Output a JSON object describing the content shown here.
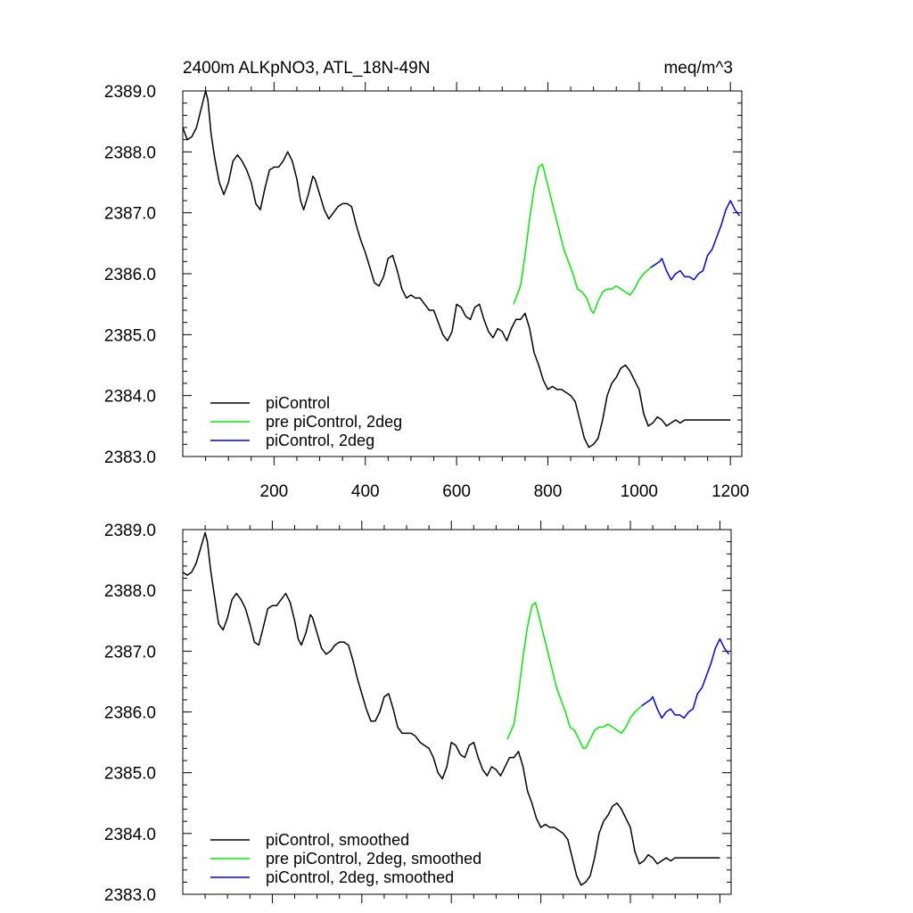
{
  "header": {
    "title_left": "2400m ALKpNO3, ATL_18N-49N",
    "title_right": "meq/m^3"
  },
  "chart_data": [
    {
      "type": "line",
      "panel": "top",
      "title": "2400m ALKpNO3, ATL_18N-49N",
      "units": "meq/m^3",
      "xlim": [
        0,
        1225
      ],
      "ylim": [
        2383.0,
        2389.0
      ],
      "y_ticks": [
        "2383.0",
        "2384.0",
        "2385.0",
        "2386.0",
        "2387.0",
        "2388.0",
        "2389.0"
      ],
      "x_ticks": [
        "200",
        "400",
        "600",
        "800",
        "1000",
        "1200"
      ],
      "legend": [
        "piControl",
        "pre piControl, 2deg",
        "piControl, 2deg"
      ],
      "legend_position": "bottom-left",
      "series": [
        {
          "name": "piControl",
          "color": "#000000",
          "x": [
            0,
            10,
            20,
            30,
            40,
            50,
            55,
            62,
            70,
            80,
            90,
            100,
            110,
            120,
            130,
            140,
            150,
            160,
            170,
            180,
            190,
            200,
            210,
            220,
            230,
            240,
            250,
            258,
            265,
            275,
            285,
            290,
            300,
            310,
            320,
            330,
            340,
            350,
            360,
            370,
            380,
            390,
            400,
            410,
            420,
            430,
            440,
            450,
            460,
            470,
            480,
            490,
            500,
            510,
            520,
            530,
            540,
            550,
            560,
            570,
            580,
            590,
            600,
            610,
            620,
            630,
            640,
            650,
            660,
            670,
            680,
            690,
            700,
            710,
            720,
            730,
            740,
            750,
            760,
            770,
            780,
            790,
            800,
            810,
            820,
            830,
            840,
            850,
            860,
            870,
            880,
            890,
            900,
            910,
            920,
            930,
            940,
            950,
            960,
            970,
            980,
            990,
            1000,
            1010,
            1020,
            1030,
            1040,
            1050,
            1060,
            1070,
            1080,
            1090,
            1100,
            1110,
            1120,
            1130,
            1140,
            1150,
            1160,
            1170,
            1180,
            1190,
            1200
          ],
          "y": [
            2388.4,
            2388.2,
            2388.25,
            2388.4,
            2388.7,
            2389.0,
            2388.85,
            2388.3,
            2387.9,
            2387.5,
            2387.3,
            2387.5,
            2387.85,
            2387.95,
            2387.85,
            2387.7,
            2387.5,
            2387.15,
            2387.05,
            2387.4,
            2387.7,
            2387.75,
            2387.75,
            2387.85,
            2388.0,
            2387.85,
            2387.55,
            2387.2,
            2387.05,
            2387.3,
            2387.6,
            2387.55,
            2387.3,
            2387.05,
            2386.9,
            2387.0,
            2387.1,
            2387.15,
            2387.15,
            2387.1,
            2386.8,
            2386.55,
            2386.35,
            2386.1,
            2385.85,
            2385.8,
            2385.95,
            2386.25,
            2386.3,
            2386.05,
            2385.75,
            2385.6,
            2385.65,
            2385.6,
            2385.6,
            2385.5,
            2385.4,
            2385.4,
            2385.2,
            2385.0,
            2384.9,
            2385.05,
            2385.5,
            2385.45,
            2385.3,
            2385.25,
            2385.45,
            2385.5,
            2385.25,
            2385.05,
            2384.95,
            2385.1,
            2385.05,
            2384.9,
            2385.1,
            2385.25,
            2385.25,
            2385.35,
            2385.1,
            2384.7,
            2384.5,
            2384.25,
            2384.1,
            2384.15,
            2384.1,
            2384.1,
            2384.05,
            2384.0,
            2383.9,
            2383.6,
            2383.3,
            2383.15,
            2383.2,
            2383.3,
            2383.6,
            2384.0,
            2384.2,
            2384.3,
            2384.45,
            2384.5,
            2384.4,
            2384.25,
            2384.1,
            2383.7,
            2383.5,
            2383.55,
            2383.65,
            2383.6,
            2383.5,
            2383.55,
            2383.6,
            2383.55,
            2383.6,
            2383.6,
            2383.6,
            2383.6,
            2383.6,
            2383.6,
            2383.6,
            2383.6,
            2383.6,
            2383.6,
            2383.6
          ]
        },
        {
          "name": "pre piControl, 2deg",
          "color": "#00ee00",
          "x": [
            725,
            740,
            750,
            760,
            770,
            780,
            788,
            795,
            805,
            815,
            825,
            835,
            845,
            855,
            865,
            875,
            885,
            895,
            900,
            910,
            920,
            930,
            940,
            950,
            960,
            970,
            980,
            990,
            1000,
            1010,
            1025
          ],
          "y": [
            2385.5,
            2385.8,
            2386.3,
            2386.9,
            2387.4,
            2387.75,
            2387.8,
            2387.6,
            2387.3,
            2387.0,
            2386.7,
            2386.4,
            2386.2,
            2386.0,
            2385.75,
            2385.7,
            2385.6,
            2385.4,
            2385.35,
            2385.55,
            2385.7,
            2385.75,
            2385.75,
            2385.8,
            2385.75,
            2385.7,
            2385.65,
            2385.75,
            2385.9,
            2386.0,
            2386.1
          ]
        },
        {
          "name": "piControl, 2deg",
          "color": "#0000ee",
          "x": [
            1025,
            1035,
            1045,
            1050,
            1060,
            1070,
            1080,
            1090,
            1100,
            1110,
            1120,
            1130,
            1140,
            1150,
            1160,
            1170,
            1180,
            1190,
            1200,
            1210,
            1220
          ],
          "y": [
            2386.1,
            2386.15,
            2386.2,
            2386.25,
            2386.05,
            2385.9,
            2386.0,
            2386.05,
            2385.95,
            2385.95,
            2385.9,
            2386.0,
            2386.05,
            2386.3,
            2386.4,
            2386.6,
            2386.8,
            2387.05,
            2387.2,
            2387.05,
            2386.95
          ]
        }
      ]
    },
    {
      "type": "line",
      "panel": "bottom",
      "xlim": [
        0,
        1225
      ],
      "ylim": [
        2383.0,
        2389.0
      ],
      "y_ticks": [
        "2383.0",
        "2384.0",
        "2385.0",
        "2386.0",
        "2387.0",
        "2388.0",
        "2389.0"
      ],
      "legend": [
        "piControl, smoothed",
        "pre piControl, 2deg, smoothed",
        "piControl, 2deg, smoothed"
      ],
      "legend_position": "bottom-left",
      "series": [
        {
          "name": "piControl, smoothed",
          "color": "#000000",
          "x": [
            0,
            10,
            20,
            30,
            40,
            50,
            55,
            62,
            70,
            80,
            90,
            100,
            110,
            120,
            130,
            140,
            150,
            160,
            170,
            180,
            190,
            200,
            210,
            220,
            230,
            240,
            250,
            258,
            265,
            275,
            285,
            290,
            300,
            310,
            320,
            330,
            340,
            350,
            360,
            370,
            380,
            390,
            400,
            410,
            420,
            430,
            440,
            450,
            460,
            470,
            480,
            490,
            500,
            510,
            520,
            530,
            540,
            550,
            560,
            570,
            580,
            590,
            600,
            610,
            620,
            630,
            640,
            650,
            660,
            670,
            680,
            690,
            700,
            710,
            720,
            730,
            740,
            750,
            760,
            770,
            780,
            790,
            800,
            810,
            820,
            830,
            840,
            850,
            860,
            870,
            880,
            890,
            900,
            910,
            920,
            930,
            940,
            950,
            960,
            970,
            980,
            990,
            1000,
            1010,
            1020,
            1030,
            1040,
            1050,
            1060,
            1070,
            1080,
            1090,
            1100,
            1110,
            1120,
            1130,
            1140,
            1150,
            1160,
            1170,
            1180,
            1190,
            1200
          ],
          "y": [
            2388.3,
            2388.25,
            2388.3,
            2388.45,
            2388.7,
            2388.95,
            2388.8,
            2388.35,
            2387.95,
            2387.45,
            2387.35,
            2387.55,
            2387.85,
            2387.95,
            2387.85,
            2387.7,
            2387.45,
            2387.15,
            2387.1,
            2387.4,
            2387.7,
            2387.75,
            2387.75,
            2387.85,
            2387.95,
            2387.8,
            2387.5,
            2387.2,
            2387.1,
            2387.3,
            2387.6,
            2387.55,
            2387.3,
            2387.05,
            2386.95,
            2387.0,
            2387.1,
            2387.15,
            2387.15,
            2387.1,
            2386.85,
            2386.55,
            2386.3,
            2386.05,
            2385.85,
            2385.85,
            2386.0,
            2386.25,
            2386.3,
            2386.05,
            2385.75,
            2385.65,
            2385.65,
            2385.65,
            2385.6,
            2385.5,
            2385.45,
            2385.4,
            2385.25,
            2385.0,
            2384.9,
            2385.1,
            2385.5,
            2385.45,
            2385.3,
            2385.25,
            2385.45,
            2385.5,
            2385.25,
            2385.05,
            2384.95,
            2385.1,
            2385.05,
            2384.95,
            2385.1,
            2385.25,
            2385.25,
            2385.35,
            2385.1,
            2384.7,
            2384.5,
            2384.25,
            2384.1,
            2384.15,
            2384.1,
            2384.1,
            2384.05,
            2384.0,
            2383.9,
            2383.6,
            2383.3,
            2383.15,
            2383.2,
            2383.3,
            2383.6,
            2384.0,
            2384.2,
            2384.3,
            2384.45,
            2384.5,
            2384.4,
            2384.25,
            2384.1,
            2383.7,
            2383.5,
            2383.55,
            2383.65,
            2383.6,
            2383.5,
            2383.55,
            2383.6,
            2383.55,
            2383.6,
            2383.6,
            2383.6,
            2383.6,
            2383.6,
            2383.6,
            2383.6,
            2383.6,
            2383.6,
            2383.6,
            2383.6
          ]
        },
        {
          "name": "pre piControl, 2deg, smoothed",
          "color": "#00ee00",
          "x": [
            725,
            740,
            750,
            760,
            770,
            780,
            788,
            795,
            805,
            815,
            825,
            835,
            845,
            855,
            865,
            875,
            885,
            895,
            900,
            910,
            920,
            930,
            940,
            950,
            960,
            970,
            980,
            990,
            1000,
            1010,
            1025
          ],
          "y": [
            2385.55,
            2385.8,
            2386.3,
            2386.9,
            2387.4,
            2387.75,
            2387.8,
            2387.6,
            2387.3,
            2387.0,
            2386.7,
            2386.4,
            2386.2,
            2386.0,
            2385.75,
            2385.7,
            2385.55,
            2385.4,
            2385.4,
            2385.55,
            2385.7,
            2385.75,
            2385.75,
            2385.8,
            2385.75,
            2385.7,
            2385.65,
            2385.75,
            2385.9,
            2386.0,
            2386.1
          ]
        },
        {
          "name": "piControl, 2deg, smoothed",
          "color": "#0000ee",
          "x": [
            1025,
            1035,
            1045,
            1050,
            1060,
            1070,
            1080,
            1090,
            1100,
            1110,
            1120,
            1130,
            1140,
            1150,
            1160,
            1170,
            1180,
            1190,
            1200,
            1210,
            1220
          ],
          "y": [
            2386.1,
            2386.15,
            2386.2,
            2386.25,
            2386.05,
            2385.9,
            2386.0,
            2386.05,
            2385.95,
            2385.95,
            2385.9,
            2386.0,
            2386.05,
            2386.3,
            2386.4,
            2386.6,
            2386.8,
            2387.05,
            2387.2,
            2387.05,
            2386.95
          ]
        }
      ]
    }
  ]
}
